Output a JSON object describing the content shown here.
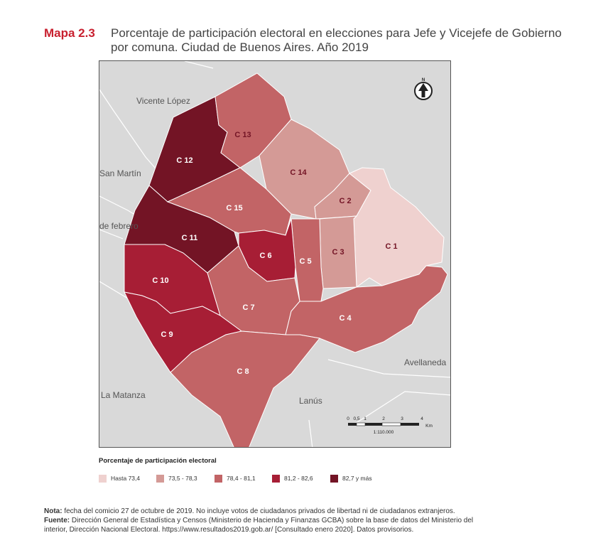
{
  "figure": {
    "label": "Mapa 2.3",
    "title_line1": "Porcentaje de participación electoral en elecciones para Jefe y Vicejefe de Gobierno",
    "title_line2": "por comuna. Ciudad de Buenos Aires. Año 2019"
  },
  "map": {
    "north_label": "N",
    "neighbors": [
      {
        "id": "vicente-lopez",
        "label": "Vicente López"
      },
      {
        "id": "san-martin",
        "label": "San Martín"
      },
      {
        "id": "tres-de-febrero",
        "label": "de febrero"
      },
      {
        "id": "la-matanza",
        "label": "La Matanza"
      },
      {
        "id": "lanus",
        "label": "Lanús"
      },
      {
        "id": "avellaneda",
        "label": "Avellaneda"
      }
    ],
    "comunas": [
      {
        "id": "c1",
        "label": "C 1",
        "class": 1
      },
      {
        "id": "c2",
        "label": "C 2",
        "class": 2
      },
      {
        "id": "c3",
        "label": "C 3",
        "class": 2
      },
      {
        "id": "c4",
        "label": "C 4",
        "class": 3
      },
      {
        "id": "c5",
        "label": "C 5",
        "class": 3
      },
      {
        "id": "c6",
        "label": "C 6",
        "class": 4
      },
      {
        "id": "c7",
        "label": "C 7",
        "class": 3
      },
      {
        "id": "c8",
        "label": "C 8",
        "class": 3
      },
      {
        "id": "c9",
        "label": "C 9",
        "class": 4
      },
      {
        "id": "c10",
        "label": "C 10",
        "class": 4
      },
      {
        "id": "c11",
        "label": "C 11",
        "class": 5
      },
      {
        "id": "c12",
        "label": "C 12",
        "class": 5
      },
      {
        "id": "c13",
        "label": "C 13",
        "class": 3
      },
      {
        "id": "c14",
        "label": "C 14",
        "class": 2
      },
      {
        "id": "c15",
        "label": "C 15",
        "class": 3
      }
    ],
    "scale_bar": {
      "ticks": [
        "0",
        "0,5",
        "1",
        "2",
        "3",
        "4"
      ],
      "unit": "Km",
      "ratio": "1:110.000"
    }
  },
  "legend": {
    "title": "Porcentaje de participación electoral",
    "items": [
      {
        "label": "Hasta 73,4",
        "color": "#efd1cf"
      },
      {
        "label": "73,5 - 78,3",
        "color": "#d49a96"
      },
      {
        "label": "78,4 - 81,1",
        "color": "#c26466"
      },
      {
        "label": "81,2 - 82,6",
        "color": "#a71e35"
      },
      {
        "label": "82,7 y más",
        "color": "#731425"
      }
    ]
  },
  "notes": {
    "nota_label": "Nota:",
    "nota_text": " fecha del comicio 27 de octubre de 2019. No incluye votos de ciudadanos privados de libertad ni de ciudadanos extranjeros.",
    "fuente_label": "Fuente:",
    "fuente_text": " Dirección General de Estadística y Censos (Ministerio de Hacienda y Finanzas GCBA) sobre la base de datos del Ministerio del",
    "fuente_text2": "interior, Dirección Nacional Electoral. https://www.resultados2019.gob.ar/ [Consultado enero 2020]. Datos provisorios."
  }
}
